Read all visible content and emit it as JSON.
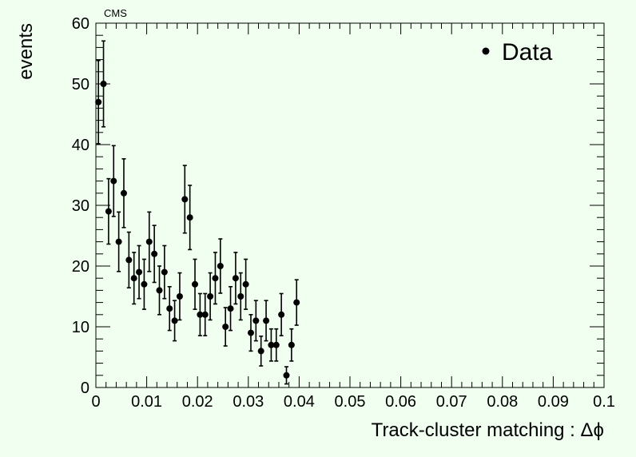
{
  "chart_data": {
    "type": "scatter",
    "title": "CMS",
    "xlabel": "Track-cluster matching : Δϕ",
    "ylabel": "events",
    "xlim": [
      0,
      0.1
    ],
    "ylim": [
      0,
      60
    ],
    "xticks": [
      "0",
      "0.01",
      "0.02",
      "0.03",
      "0.04",
      "0.05",
      "0.06",
      "0.07",
      "0.08",
      "0.09",
      "0.1"
    ],
    "yticks": [
      "0",
      "10",
      "20",
      "30",
      "40",
      "50",
      "60"
    ],
    "grid": false,
    "legend_position": "top-right",
    "series": [
      {
        "name": "Data",
        "color": "#000000",
        "x": [
          0.0005,
          0.0015,
          0.0025,
          0.0035,
          0.0045,
          0.0055,
          0.0065,
          0.0075,
          0.0085,
          0.0095,
          0.0105,
          0.0115,
          0.0125,
          0.0135,
          0.0145,
          0.0155,
          0.0165,
          0.0175,
          0.0185,
          0.0195,
          0.0205,
          0.0215,
          0.0225,
          0.0235,
          0.0245,
          0.0255,
          0.0265,
          0.0275,
          0.0285,
          0.0295,
          0.0305,
          0.0315,
          0.0325,
          0.0335,
          0.0345,
          0.0355,
          0.0365,
          0.0375,
          0.0385,
          0.0395
        ],
        "y": [
          47,
          50,
          29,
          34,
          24,
          32,
          21,
          18,
          19,
          17,
          24,
          22,
          16,
          19,
          13,
          11,
          15,
          31,
          28,
          17,
          12,
          12,
          15,
          18,
          20,
          10,
          13,
          18,
          15,
          17,
          9,
          11,
          6,
          11,
          7,
          7,
          12,
          2,
          7,
          14
        ]
      }
    ]
  }
}
